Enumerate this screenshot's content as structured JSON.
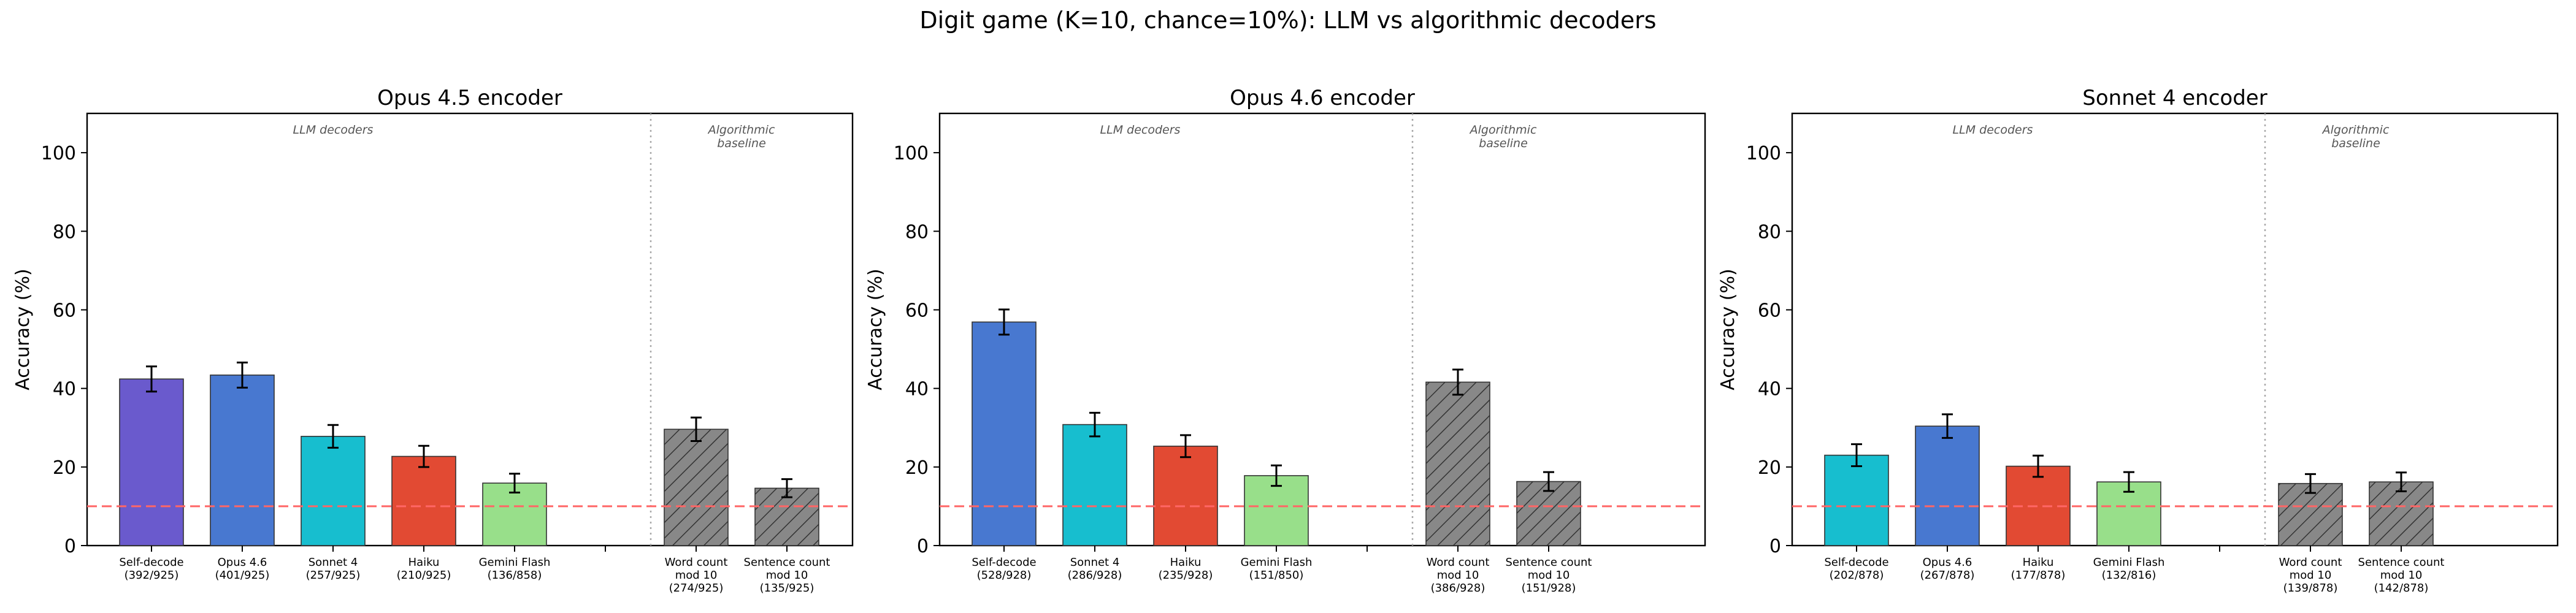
{
  "figure": {
    "suptitle": "Digit game (K=10, chance=10%): LLM vs algorithmic decoders",
    "ylabel": "Accuracy (%)",
    "chance_level": 10,
    "ylim": [
      0,
      110
    ],
    "yticks": [
      "0",
      "20",
      "40",
      "60",
      "80",
      "100"
    ],
    "group_labels": {
      "llm": "LLM decoders",
      "algo": [
        "Algorithmic",
        "baseline"
      ]
    },
    "colors": {
      "self_decode_purple": "#6A5ACD",
      "opus46_blue": "#4878D0",
      "sonnet4_cyan": "#17BECF",
      "haiku_red": "#E24A33",
      "gemini_green": "#98DF8A",
      "algo_gray": "#888888",
      "chance_line": "#FF6666"
    }
  },
  "chart_data": [
    {
      "type": "bar",
      "title": "Opus 4.5 encoder",
      "ylabel": "Accuracy (%)",
      "ylim": [
        0,
        110
      ],
      "bars": [
        {
          "label": [
            "Self-decode",
            "(392/925)"
          ],
          "value": 42.4,
          "err": 3.2,
          "color": "#6A5ACD",
          "group": "llm",
          "hatch": false
        },
        {
          "label": [
            "Opus 4.6",
            "(401/925)"
          ],
          "value": 43.4,
          "err": 3.2,
          "color": "#4878D0",
          "group": "llm",
          "hatch": false
        },
        {
          "label": [
            "Sonnet 4",
            "(257/925)"
          ],
          "value": 27.8,
          "err": 2.9,
          "color": "#17BECF",
          "group": "llm",
          "hatch": false
        },
        {
          "label": [
            "Haiku",
            "(210/925)"
          ],
          "value": 22.7,
          "err": 2.7,
          "color": "#E24A33",
          "group": "llm",
          "hatch": false
        },
        {
          "label": [
            "Gemini Flash",
            "(136/858)"
          ],
          "value": 15.9,
          "err": 2.4,
          "color": "#98DF8A",
          "group": "llm",
          "hatch": false
        },
        {
          "label": [
            "Word count",
            "mod 10",
            "(274/925)"
          ],
          "value": 29.6,
          "err": 3.0,
          "color": "#888888",
          "group": "algo",
          "hatch": true
        },
        {
          "label": [
            "Sentence count",
            "mod 10",
            "(135/925)"
          ],
          "value": 14.6,
          "err": 2.3,
          "color": "#888888",
          "group": "algo",
          "hatch": true
        }
      ]
    },
    {
      "type": "bar",
      "title": "Opus 4.6 encoder",
      "ylabel": "Accuracy (%)",
      "ylim": [
        0,
        110
      ],
      "bars": [
        {
          "label": [
            "Self-decode",
            "(528/928)"
          ],
          "value": 56.9,
          "err": 3.2,
          "color": "#4878D0",
          "group": "llm",
          "hatch": false
        },
        {
          "label": [
            "Sonnet 4",
            "(286/928)"
          ],
          "value": 30.8,
          "err": 3.0,
          "color": "#17BECF",
          "group": "llm",
          "hatch": false
        },
        {
          "label": [
            "Haiku",
            "(235/928)"
          ],
          "value": 25.3,
          "err": 2.8,
          "color": "#E24A33",
          "group": "llm",
          "hatch": false
        },
        {
          "label": [
            "Gemini Flash",
            "(151/850)"
          ],
          "value": 17.8,
          "err": 2.6,
          "color": "#98DF8A",
          "group": "llm",
          "hatch": false
        },
        {
          "label": [
            "Word count",
            "mod 10",
            "(386/928)"
          ],
          "value": 41.6,
          "err": 3.2,
          "color": "#888888",
          "group": "algo",
          "hatch": true
        },
        {
          "label": [
            "Sentence count",
            "mod 10",
            "(151/928)"
          ],
          "value": 16.3,
          "err": 2.4,
          "color": "#888888",
          "group": "algo",
          "hatch": true
        }
      ]
    },
    {
      "type": "bar",
      "title": "Sonnet 4 encoder",
      "ylabel": "Accuracy (%)",
      "ylim": [
        0,
        110
      ],
      "bars": [
        {
          "label": [
            "Self-decode",
            "(202/878)"
          ],
          "value": 23.0,
          "err": 2.8,
          "color": "#17BECF",
          "group": "llm",
          "hatch": false
        },
        {
          "label": [
            "Opus 4.6",
            "(267/878)"
          ],
          "value": 30.4,
          "err": 3.0,
          "color": "#4878D0",
          "group": "llm",
          "hatch": false
        },
        {
          "label": [
            "Haiku",
            "(177/878)"
          ],
          "value": 20.2,
          "err": 2.7,
          "color": "#E24A33",
          "group": "llm",
          "hatch": false
        },
        {
          "label": [
            "Gemini Flash",
            "(132/816)"
          ],
          "value": 16.2,
          "err": 2.5,
          "color": "#98DF8A",
          "group": "llm",
          "hatch": false
        },
        {
          "label": [
            "Word count",
            "mod 10",
            "(139/878)"
          ],
          "value": 15.8,
          "err": 2.4,
          "color": "#888888",
          "group": "algo",
          "hatch": true
        },
        {
          "label": [
            "Sentence count",
            "mod 10",
            "(142/878)"
          ],
          "value": 16.2,
          "err": 2.4,
          "color": "#888888",
          "group": "algo",
          "hatch": true
        }
      ]
    }
  ]
}
